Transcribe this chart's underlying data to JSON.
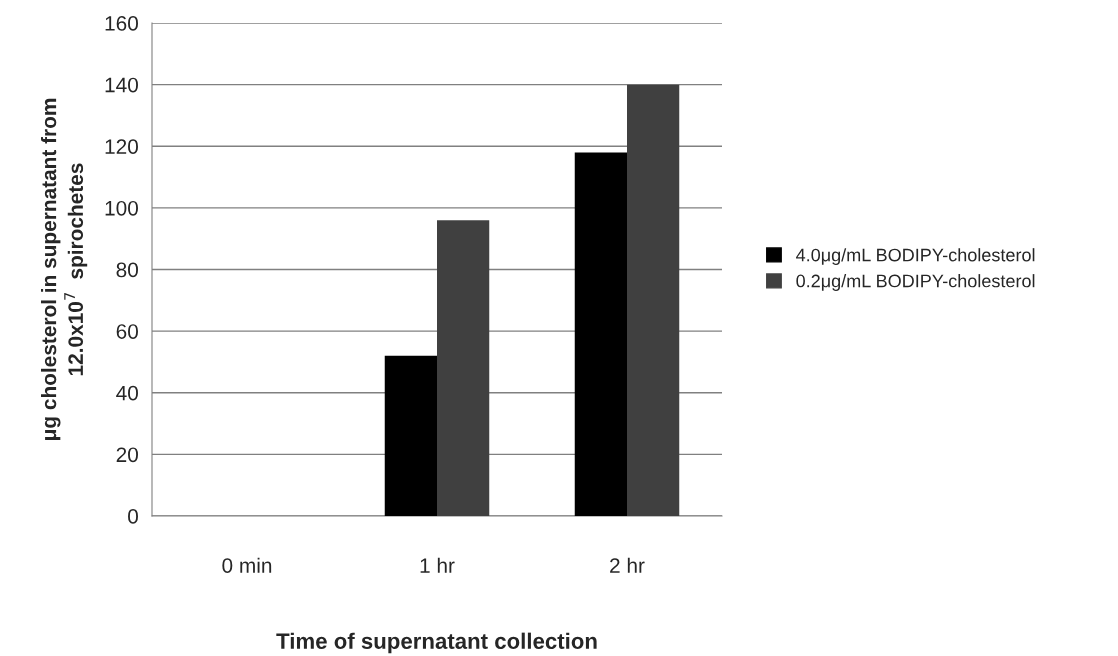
{
  "chart_data": {
    "type": "bar",
    "xlabel": "Time of supernatant collection",
    "ylabel": "μg cholesterol in supernatant from\n12.0x10$^{7}$  spirochetes",
    "categories": [
      "0 min",
      "1 hr",
      "2 hr"
    ],
    "series": [
      {
        "name": "4.0μg/mL BODIPY-cholesterol",
        "color": "#000000",
        "values": [
          0,
          52,
          118
        ]
      },
      {
        "name": "0.2μg/mL BODIPY-cholesterol",
        "color": "#404040",
        "values": [
          0,
          96,
          140
        ]
      }
    ],
    "ylim": [
      0,
      160
    ],
    "yticks": [
      0,
      20,
      40,
      60,
      80,
      100,
      120,
      140,
      160
    ],
    "grid": "y",
    "legend": "right"
  }
}
